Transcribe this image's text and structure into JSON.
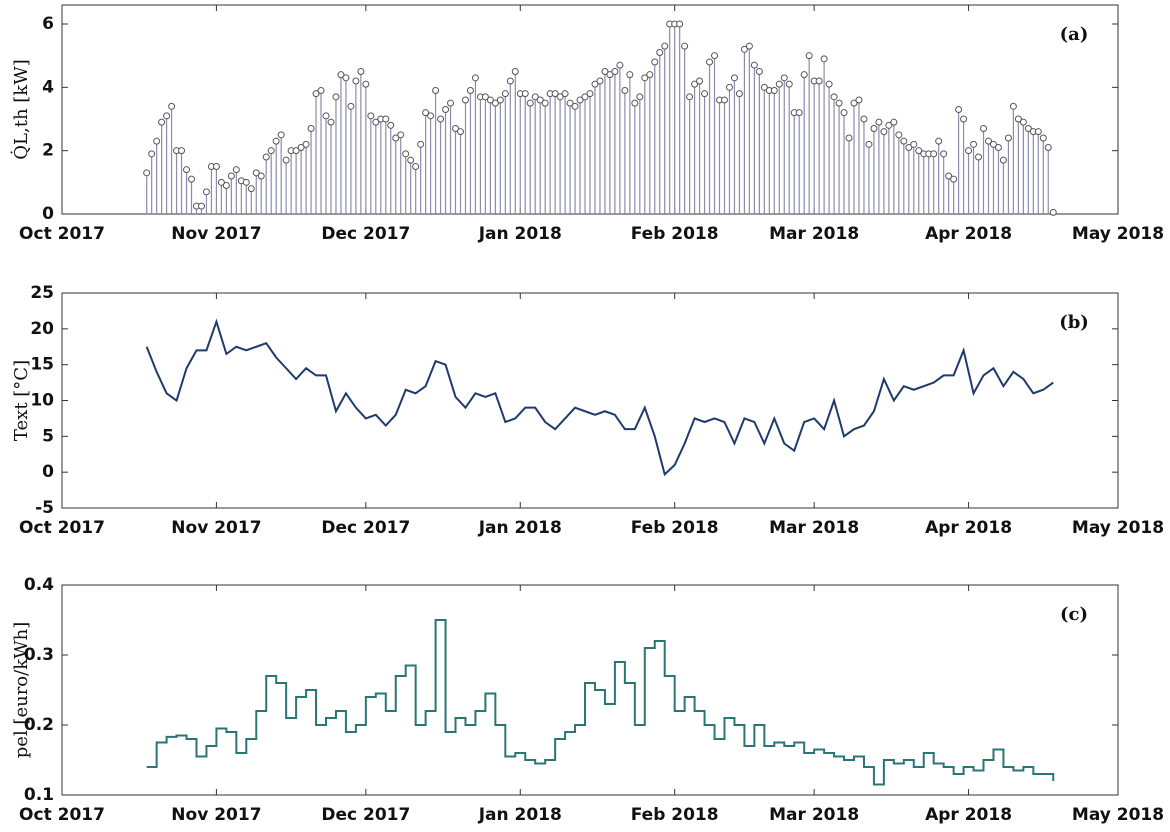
{
  "chart_data": [
    {
      "type": "stem",
      "annotation": "(a)",
      "ylabel": "Q̇L,th [kW]",
      "color": "#8c8cab",
      "marker_color": "#555555",
      "xlim": [
        0,
        212
      ],
      "xticks": [
        {
          "value": 0,
          "label": "Oct 2017"
        },
        {
          "value": 31,
          "label": "Nov 2017"
        },
        {
          "value": 61,
          "label": "Dec 2017"
        },
        {
          "value": 92,
          "label": "Jan 2018"
        },
        {
          "value": 123,
          "label": "Feb 2018"
        },
        {
          "value": 151,
          "label": "Mar 2018"
        },
        {
          "value": 182,
          "label": "Apr 2018"
        },
        {
          "value": 212,
          "label": "May 2018"
        }
      ],
      "ylim": [
        0,
        6.6
      ],
      "yticks": [
        0,
        2,
        4,
        6
      ],
      "x": [
        17,
        18,
        19,
        20,
        21,
        22,
        23,
        24,
        25,
        26,
        27,
        28,
        29,
        30,
        31,
        32,
        33,
        34,
        35,
        36,
        37,
        38,
        39,
        40,
        41,
        42,
        43,
        44,
        45,
        46,
        47,
        48,
        49,
        50,
        51,
        52,
        53,
        54,
        55,
        56,
        57,
        58,
        59,
        60,
        61,
        62,
        63,
        64,
        65,
        66,
        67,
        68,
        69,
        70,
        71,
        72,
        73,
        74,
        75,
        76,
        77,
        78,
        79,
        80,
        81,
        82,
        83,
        84,
        85,
        86,
        87,
        88,
        89,
        90,
        91,
        92,
        93,
        94,
        95,
        96,
        97,
        98,
        99,
        100,
        101,
        102,
        103,
        104,
        105,
        106,
        107,
        108,
        109,
        110,
        111,
        112,
        113,
        114,
        115,
        116,
        117,
        118,
        119,
        120,
        121,
        122,
        123,
        124,
        125,
        126,
        127,
        128,
        129,
        130,
        131,
        132,
        133,
        134,
        135,
        136,
        137,
        138,
        139,
        140,
        141,
        142,
        143,
        144,
        145,
        146,
        147,
        148,
        149,
        150,
        151,
        152,
        153,
        154,
        155,
        156,
        157,
        158,
        159,
        160,
        161,
        162,
        163,
        164,
        165,
        166,
        167,
        168,
        169,
        170,
        171,
        172,
        173,
        174,
        175,
        176,
        177,
        178,
        179,
        180,
        181,
        182,
        183,
        184,
        185,
        186,
        187,
        188,
        189,
        190,
        191,
        192,
        193,
        194,
        195,
        196,
        197,
        198,
        199
      ],
      "values": [
        1.3,
        1.9,
        2.3,
        2.9,
        3.1,
        3.4,
        2.0,
        2.0,
        1.4,
        1.1,
        0.25,
        0.25,
        0.7,
        1.5,
        1.5,
        1.0,
        0.9,
        1.2,
        1.4,
        1.05,
        1.0,
        0.8,
        1.3,
        1.2,
        1.8,
        2.0,
        2.3,
        2.5,
        1.7,
        2.0,
        2.0,
        2.1,
        2.2,
        2.7,
        3.8,
        3.9,
        3.1,
        2.9,
        3.7,
        4.4,
        4.3,
        3.4,
        4.2,
        4.5,
        4.1,
        3.1,
        2.9,
        3.0,
        3.0,
        2.8,
        2.4,
        2.5,
        1.9,
        1.7,
        1.5,
        2.2,
        3.2,
        3.1,
        3.9,
        3.0,
        3.3,
        3.5,
        2.7,
        2.6,
        3.6,
        3.9,
        4.3,
        3.7,
        3.7,
        3.6,
        3.5,
        3.6,
        3.8,
        4.2,
        4.5,
        3.8,
        3.8,
        3.5,
        3.7,
        3.6,
        3.5,
        3.8,
        3.8,
        3.7,
        3.8,
        3.5,
        3.4,
        3.6,
        3.7,
        3.8,
        4.1,
        4.2,
        4.5,
        4.4,
        4.5,
        4.7,
        3.9,
        4.4,
        3.5,
        3.7,
        4.3,
        4.4,
        4.8,
        5.1,
        5.3,
        6.0,
        6.0,
        6.0,
        5.3,
        3.7,
        4.1,
        4.2,
        3.8,
        4.8,
        5.0,
        3.6,
        3.6,
        4.0,
        4.3,
        3.8,
        5.2,
        5.3,
        4.7,
        4.5,
        4.0,
        3.9,
        3.9,
        4.1,
        4.3,
        4.1,
        3.2,
        3.2,
        4.4,
        5.0,
        4.2,
        4.2,
        4.9,
        4.1,
        3.7,
        3.5,
        3.2,
        2.4,
        3.5,
        3.6,
        3.0,
        2.2,
        2.7,
        2.9,
        2.6,
        2.8,
        2.9,
        2.5,
        2.3,
        2.1,
        2.2,
        2.0,
        1.9,
        1.9,
        1.9,
        2.3,
        1.9,
        1.2,
        1.1,
        3.3,
        3.0,
        2.0,
        2.2,
        1.8,
        2.7,
        2.3,
        2.2,
        2.1,
        1.7,
        2.4,
        3.4,
        3.0,
        2.9,
        2.7,
        2.6,
        2.6,
        2.4,
        2.1,
        0.05
      ]
    },
    {
      "type": "line",
      "annotation": "(b)",
      "ylabel": "Text [°C]",
      "color": "#1f3b6b",
      "xlim": [
        0,
        212
      ],
      "xticks": [
        {
          "value": 0,
          "label": "Oct 2017"
        },
        {
          "value": 31,
          "label": "Nov 2017"
        },
        {
          "value": 61,
          "label": "Dec 2017"
        },
        {
          "value": 92,
          "label": "Jan 2018"
        },
        {
          "value": 123,
          "label": "Feb 2018"
        },
        {
          "value": 151,
          "label": "Mar 2018"
        },
        {
          "value": 182,
          "label": "Apr 2018"
        },
        {
          "value": 212,
          "label": "May 2018"
        }
      ],
      "ylim": [
        -5,
        25
      ],
      "yticks": [
        -5,
        0,
        5,
        10,
        15,
        20,
        25
      ],
      "x": [
        17,
        19,
        21,
        23,
        25,
        27,
        29,
        31,
        33,
        35,
        37,
        39,
        41,
        43,
        45,
        47,
        49,
        51,
        53,
        55,
        57,
        59,
        61,
        63,
        65,
        67,
        69,
        71,
        73,
        75,
        77,
        79,
        81,
        83,
        85,
        87,
        89,
        91,
        93,
        95,
        97,
        99,
        101,
        103,
        105,
        107,
        109,
        111,
        113,
        115,
        117,
        119,
        121,
        123,
        125,
        127,
        129,
        131,
        133,
        135,
        137,
        139,
        141,
        143,
        145,
        147,
        149,
        151,
        153,
        155,
        157,
        159,
        161,
        163,
        165,
        167,
        169,
        171,
        173,
        175,
        177,
        179,
        181,
        183,
        185,
        187,
        189,
        191,
        193,
        195,
        197,
        199
      ],
      "values": [
        17.5,
        14,
        11,
        10,
        14.5,
        17,
        17,
        21,
        16.5,
        17.5,
        17,
        17.5,
        18,
        16,
        14.5,
        13,
        14.5,
        13.5,
        13.5,
        8.5,
        11,
        9,
        7.5,
        8,
        6.5,
        8,
        11.5,
        11,
        12,
        15.5,
        15,
        10.5,
        9,
        11,
        10.5,
        11,
        7,
        7.5,
        9,
        9,
        7,
        6,
        7.5,
        9,
        8.5,
        8,
        8.5,
        8,
        6,
        6,
        9,
        5,
        -0.3,
        1,
        4,
        7.5,
        7,
        7.5,
        7,
        4,
        7.5,
        7,
        4,
        7.5,
        4,
        3,
        7,
        7.5,
        6,
        10,
        5,
        6,
        6.5,
        8.5,
        13,
        10,
        12,
        11.5,
        12,
        12.5,
        13.5,
        13.5,
        17,
        11,
        13.5,
        14.5,
        12,
        14,
        13,
        11,
        11.5,
        12.5
      ]
    },
    {
      "type": "step",
      "annotation": "(c)",
      "ylabel": "pel [euro/kWh]",
      "color": "#2a7575",
      "xlim": [
        0,
        212
      ],
      "xticks": [
        {
          "value": 0,
          "label": "Oct 2017"
        },
        {
          "value": 31,
          "label": "Nov 2017"
        },
        {
          "value": 61,
          "label": "Dec 2017"
        },
        {
          "value": 92,
          "label": "Jan 2018"
        },
        {
          "value": 123,
          "label": "Feb 2018"
        },
        {
          "value": 151,
          "label": "Mar 2018"
        },
        {
          "value": 182,
          "label": "Apr 2018"
        },
        {
          "value": 212,
          "label": "May 2018"
        }
      ],
      "ylim": [
        0.1,
        0.4
      ],
      "yticks": [
        0.1,
        0.2,
        0.3,
        0.4
      ],
      "x": [
        17,
        19,
        21,
        23,
        25,
        27,
        29,
        31,
        33,
        35,
        37,
        39,
        41,
        43,
        45,
        47,
        49,
        51,
        53,
        55,
        57,
        59,
        61,
        63,
        65,
        67,
        69,
        71,
        73,
        75,
        77,
        79,
        81,
        83,
        85,
        87,
        89,
        91,
        93,
        95,
        97,
        99,
        101,
        103,
        105,
        107,
        109,
        111,
        113,
        115,
        117,
        119,
        121,
        123,
        125,
        127,
        129,
        131,
        133,
        135,
        137,
        139,
        141,
        143,
        145,
        147,
        149,
        151,
        153,
        155,
        157,
        159,
        161,
        163,
        165,
        167,
        169,
        171,
        173,
        175,
        177,
        179,
        181,
        183,
        185,
        187,
        189,
        191,
        193,
        195,
        197,
        199
      ],
      "values": [
        0.14,
        0.175,
        0.183,
        0.185,
        0.18,
        0.155,
        0.17,
        0.195,
        0.19,
        0.16,
        0.18,
        0.22,
        0.27,
        0.26,
        0.21,
        0.24,
        0.25,
        0.2,
        0.21,
        0.22,
        0.19,
        0.2,
        0.24,
        0.245,
        0.22,
        0.27,
        0.285,
        0.2,
        0.22,
        0.35,
        0.19,
        0.21,
        0.2,
        0.22,
        0.245,
        0.2,
        0.155,
        0.16,
        0.15,
        0.145,
        0.15,
        0.18,
        0.19,
        0.2,
        0.26,
        0.25,
        0.23,
        0.29,
        0.26,
        0.2,
        0.31,
        0.32,
        0.27,
        0.22,
        0.24,
        0.22,
        0.2,
        0.18,
        0.21,
        0.2,
        0.17,
        0.2,
        0.17,
        0.175,
        0.17,
        0.175,
        0.16,
        0.165,
        0.16,
        0.155,
        0.15,
        0.155,
        0.14,
        0.115,
        0.15,
        0.145,
        0.15,
        0.14,
        0.16,
        0.145,
        0.14,
        0.13,
        0.14,
        0.135,
        0.15,
        0.165,
        0.14,
        0.135,
        0.14,
        0.13,
        0.13,
        0.12
      ]
    }
  ]
}
